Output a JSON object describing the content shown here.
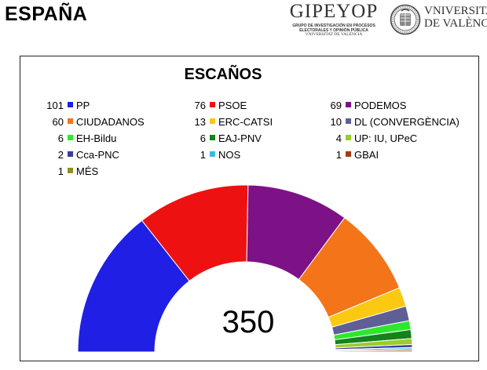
{
  "header": {
    "region": "ESPAÑA",
    "logo_name": "GIPEYOP",
    "logo_sub_1": "GRUPO DE INVESTIGACIÓN EN PROCESOS",
    "logo_sub_2": "ELECTORALES Y OPINIÓN PÚBLICA",
    "logo_sub_3": "VNIVERSITAT DE VALÈNCIA",
    "university_line1": "VNIVERSITAT",
    "university_line2": "DE VALÈNCIA"
  },
  "chart_data": {
    "type": "parliament-semicircle",
    "title": "ESCAÑOS",
    "total_label": "350",
    "total": 350,
    "legend_columns": 3,
    "series": [
      {
        "name": "PP",
        "value": 101,
        "color": "#1f1fe6"
      },
      {
        "name": "PSOE",
        "value": 76,
        "color": "#ee1111"
      },
      {
        "name": "PODEMOS",
        "value": 69,
        "color": "#7d1186"
      },
      {
        "name": "CIUDADANOS",
        "value": 60,
        "color": "#f47419"
      },
      {
        "name": "ERC-CATSI",
        "value": 13,
        "color": "#fbc812"
      },
      {
        "name": "DL (CONVERGÈNCIA)",
        "value": 10,
        "color": "#5f5f96"
      },
      {
        "name": "EH-Bildu",
        "value": 6,
        "color": "#2ce82c"
      },
      {
        "name": "EAJ-PNV",
        "value": 6,
        "color": "#15821c"
      },
      {
        "name": "UP: IU, UPeC",
        "value": 4,
        "color": "#9bcc2a"
      },
      {
        "name": "Cca-PNC",
        "value": 2,
        "color": "#3c3ca0"
      },
      {
        "name": "NOS",
        "value": 1,
        "color": "#3bb9e2"
      },
      {
        "name": "GBAI",
        "value": 1,
        "color": "#a33c10"
      },
      {
        "name": "MÉS",
        "value": 1,
        "color": "#8f8f22"
      }
    ]
  }
}
